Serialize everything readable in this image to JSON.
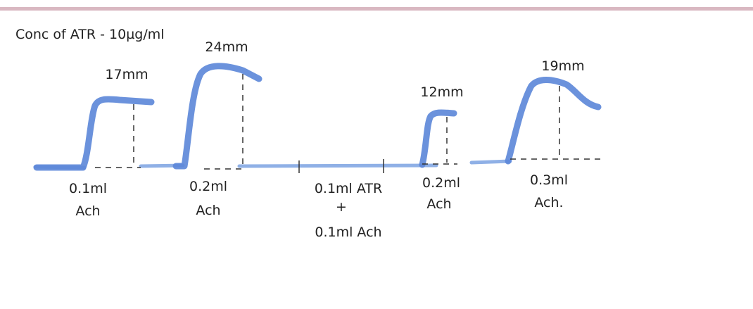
{
  "header": {
    "title": "Conc of ATR - 10µg/ml"
  },
  "responses": [
    {
      "height": "17mm",
      "dose": "0.1ml",
      "drug": "Ach"
    },
    {
      "height": "24mm",
      "dose": "0.2ml",
      "drug": "Ach"
    },
    {
      "height": "12mm",
      "dose": "0.2ml",
      "drug": "Ach"
    },
    {
      "height": "19mm",
      "dose": "0.3ml",
      "drug": "Ach."
    }
  ],
  "block": {
    "line1": "0.1ml ATR",
    "line2": "+",
    "line3": "0.1ml Ach"
  }
}
